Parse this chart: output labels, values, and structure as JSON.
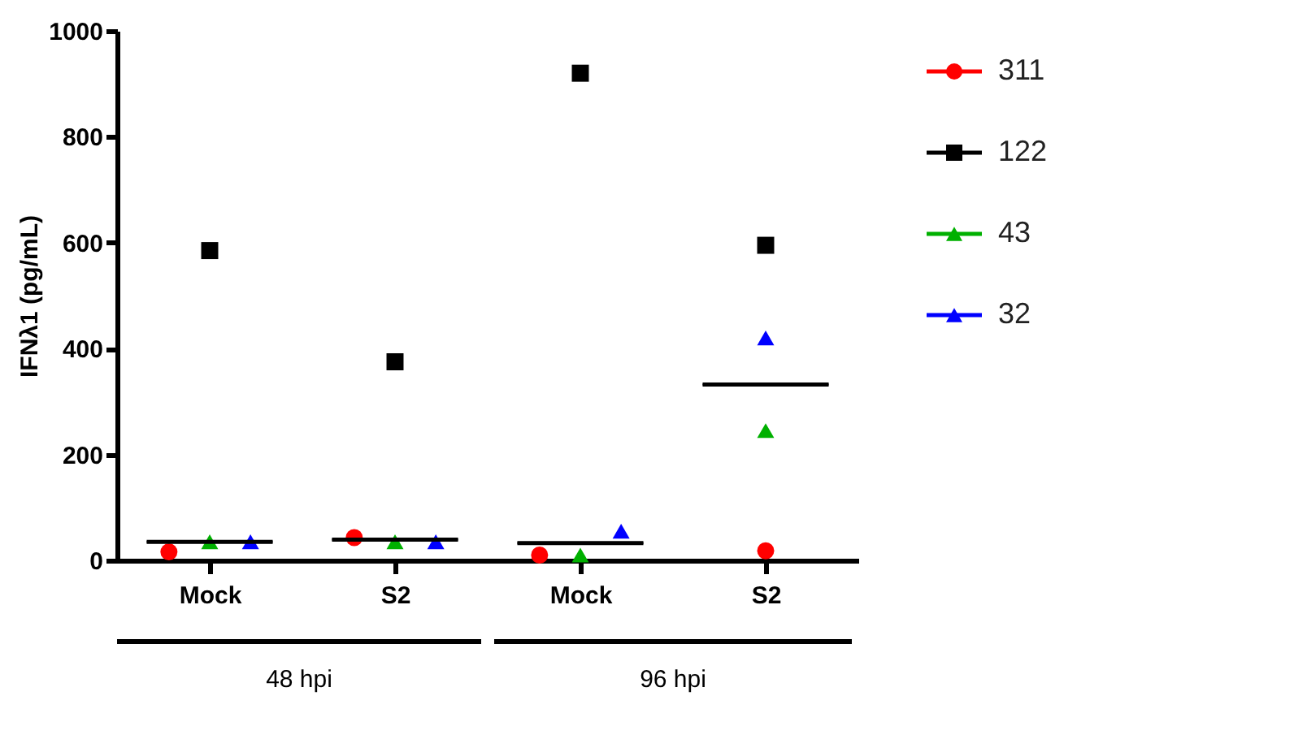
{
  "chart_data": {
    "type": "scatter",
    "ylabel": "IFNλ1 (pg/mL)",
    "categories": [
      "Mock",
      "S2",
      "Mock",
      "S2"
    ],
    "series": [
      {
        "name": "311",
        "color": "#ff0000",
        "marker": "circle",
        "values": [
          16,
          43,
          10,
          18
        ]
      },
      {
        "name": "122",
        "color": "#000000",
        "marker": "square",
        "values": [
          585,
          375,
          920,
          595
        ]
      },
      {
        "name": "43",
        "color": "#00b000",
        "marker": "triangle",
        "values": [
          35,
          35,
          10,
          245
        ]
      },
      {
        "name": "32",
        "color": "#0000ff",
        "marker": "triangle",
        "values": [
          35,
          35,
          55,
          420
        ]
      },
      {
        "type": "box",
        "color": "#000000",
        "boxes": [
          {
            "low": 35,
            "q1": 35,
            "median": 35,
            "q3": 35,
            "high": 35
          },
          {
            "low": 39,
            "q1": 39,
            "median": 39,
            "q3": 39,
            "high": 39
          },
          {
            "low": 32.5,
            "q1": 32.5,
            "median": 32.5,
            "q3": 32.5,
            "high": 32.5
          },
          {
            "low": 332,
            "q1": 332,
            "median": 332,
            "q3": 332,
            "high": 332
          }
        ]
      }
    ],
    "ylim": [
      0,
      1000
    ],
    "yticks": [
      0,
      200,
      400,
      600,
      800,
      1000
    ],
    "annotations": [
      "48 hpi",
      "96 hpi"
    ],
    "legend": "right",
    "grid": false
  }
}
